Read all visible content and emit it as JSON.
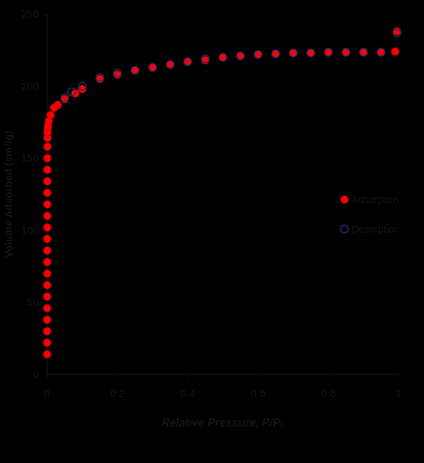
{
  "chart_data": {
    "type": "scatter",
    "xlabel": "Relative Pressure, P/P₀",
    "ylabel": "Volume Adsorbed (cm³/g)",
    "xlim": [
      0,
      1
    ],
    "ylim": [
      0,
      250
    ],
    "xticks": [
      0,
      0.2,
      0.4,
      0.6,
      0.8,
      1
    ],
    "yticks": [
      0,
      50,
      100,
      150,
      200,
      250
    ],
    "grid": false,
    "legend": "right",
    "series": [
      {
        "name": "Adsorption",
        "color": "#ff0000",
        "marker": "filled",
        "x": [
          0.0001,
          0.0001,
          0.0001,
          0.0001,
          0.0002,
          0.0002,
          0.0002,
          0.0002,
          0.0003,
          0.0003,
          0.0003,
          0.0004,
          0.0004,
          0.0005,
          0.0005,
          0.0006,
          0.0007,
          0.0008,
          0.001,
          0.0012,
          0.0015,
          0.002,
          0.003,
          0.005,
          0.01,
          0.02,
          0.03,
          0.05,
          0.08,
          0.1,
          0.15,
          0.2,
          0.25,
          0.3,
          0.35,
          0.4,
          0.45,
          0.5,
          0.55,
          0.6,
          0.65,
          0.7,
          0.75,
          0.8,
          0.85,
          0.9,
          0.95,
          0.99,
          0.995
        ],
        "values": [
          14,
          22,
          30,
          38,
          46,
          54,
          62,
          70,
          78,
          86,
          94,
          102,
          110,
          118,
          126,
          134,
          142,
          150,
          158,
          164,
          168,
          171,
          173,
          176,
          180,
          185,
          187,
          191,
          195,
          198,
          205,
          208,
          211,
          213,
          215,
          217,
          218,
          220,
          221,
          222,
          222.5,
          223,
          223,
          223.5,
          223.5,
          223.5,
          223.5,
          224,
          238
        ]
      },
      {
        "name": "Desorption",
        "color": "#1f2f6b",
        "marker": "open",
        "x": [
          0.995,
          0.95,
          0.9,
          0.85,
          0.8,
          0.75,
          0.7,
          0.65,
          0.6,
          0.55,
          0.5,
          0.45,
          0.4,
          0.35,
          0.3,
          0.25,
          0.2,
          0.15,
          0.1,
          0.07,
          0.05
        ],
        "values": [
          237,
          223.5,
          223.5,
          223.5,
          223.5,
          223,
          223,
          222.5,
          222,
          221,
          220,
          219,
          217,
          215,
          213,
          211,
          209,
          206,
          200,
          196,
          192
        ]
      }
    ]
  }
}
